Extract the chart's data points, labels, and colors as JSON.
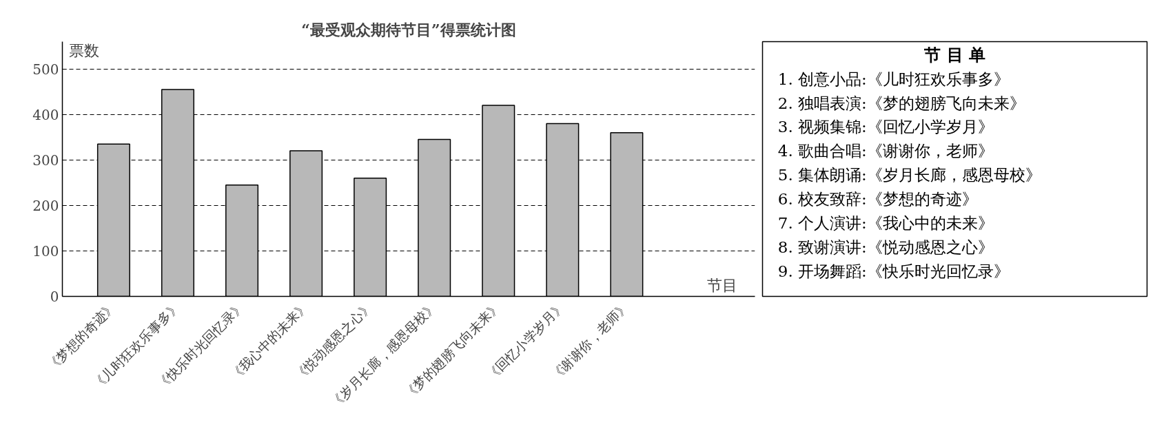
{
  "chart_data": [
    {
      "type": "bar",
      "title": "“最受观众期待节目”得票统计图",
      "xlabel": "节目",
      "ylabel": "票数",
      "categories": [
        "《梦想的奇迹》",
        "《儿时狂欢乐事多》",
        "《快乐时光回忆录》",
        "《我心中的未来》",
        "《悦动感恩之心》",
        "《岁月长廊，感恩母校》",
        "《梦的翅膀飞向未来》",
        "《回忆小学岁月》",
        "《谢谢你，老师》"
      ],
      "values": [
        335,
        455,
        245,
        320,
        260,
        345,
        420,
        380,
        360
      ],
      "color": "#b8b8b8",
      "ylim": [
        0,
        560
      ],
      "yticks": [
        0,
        100,
        200,
        300,
        400,
        500
      ],
      "grid": "y",
      "line_style": "dashed"
    },
    {
      "type": "other",
      "title": "节 目 单",
      "annotations": [
        "1. 创意小品:《儿时狂欢乐事多》",
        "2. 独唱表演:《梦的翅膀飞向未来》",
        "3. 视频集锦:《回忆小学岁月》",
        "4. 歌曲合唱:《谢谢你，老师》",
        "5. 集体朗诵:《岁月长廊，感恩母校》",
        "6. 校友致辞:《梦想的奇迹》",
        "7. 个人演讲:《我心中的未来》",
        "8. 致谢演讲:《悦动感恩之心》",
        "9. 开场舞蹈:《快乐时光回忆录》"
      ]
    }
  ]
}
